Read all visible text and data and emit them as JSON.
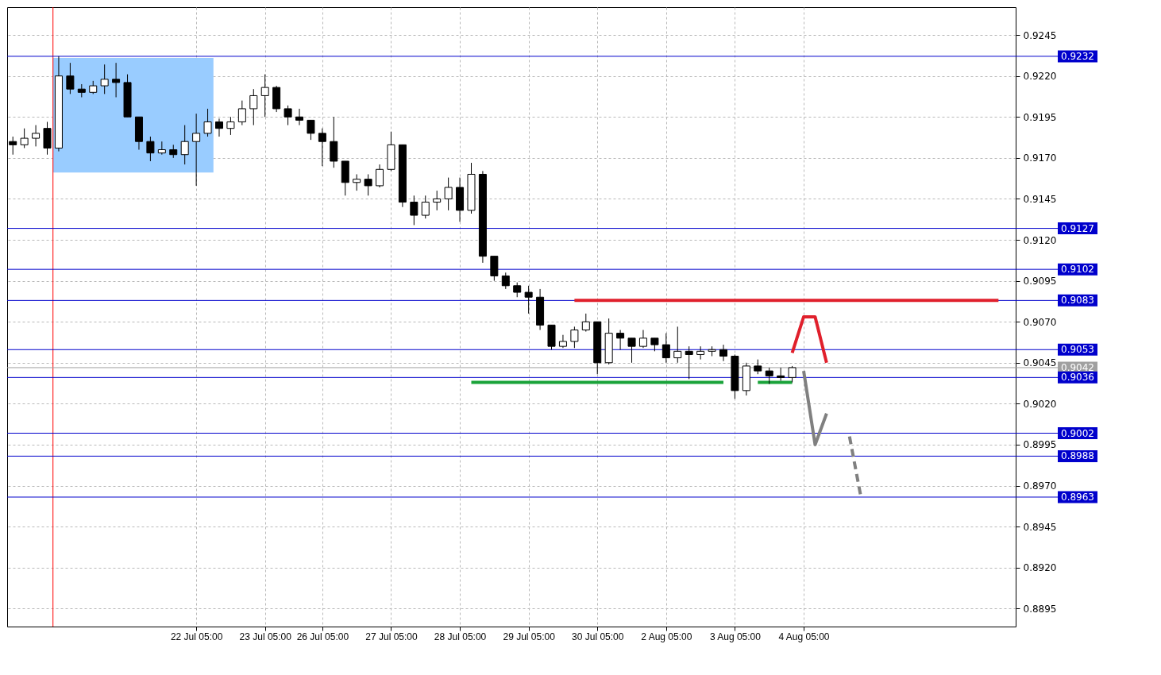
{
  "chart_data": {
    "type": "candlestick",
    "color": "#000000",
    "grid": true,
    "ylim": [
      0.8884,
      0.9262
    ],
    "yticks": [
      0.9245,
      {
        "value": 0.922,
        "label": "0.9220"
      },
      0.9195,
      {
        "value": 0.917,
        "label": "0.9170"
      },
      0.9145,
      {
        "value": 0.912,
        "label": "0.9120"
      },
      0.9095,
      {
        "value": 0.907,
        "label": "0.9070"
      },
      0.9045,
      {
        "value": 0.902,
        "label": "0.9020"
      },
      0.8995,
      {
        "value": 0.897,
        "label": "0.8970"
      },
      0.8945,
      {
        "value": 0.892,
        "label": "0.8920"
      },
      0.8895
    ],
    "categories": [
      null,
      null,
      null,
      null,
      null,
      null,
      null,
      null,
      null,
      null,
      null,
      null,
      null,
      null,
      null,
      null,
      "22 Jul 05:00",
      null,
      null,
      null,
      null,
      null,
      "23 Jul 05:00",
      null,
      null,
      null,
      null,
      "26 Jul 05:00",
      null,
      null,
      null,
      null,
      null,
      "27 Jul 05:00",
      null,
      null,
      null,
      null,
      null,
      "28 Jul 05:00",
      null,
      null,
      null,
      null,
      null,
      "29 Jul 05:00",
      null,
      null,
      null,
      null,
      null,
      "30 Jul 05:00",
      null,
      null,
      null,
      null,
      null,
      "2 Aug 05:00",
      null,
      null,
      null,
      null,
      null,
      "3 Aug 05:00",
      null,
      null,
      null,
      null,
      null,
      "4 Aug 05:00",
      null,
      null,
      null,
      null,
      null,
      null,
      null,
      null,
      null,
      null,
      null,
      null,
      null,
      null,
      null,
      null,
      null,
      null
    ],
    "ohlc": [
      [
        0.918,
        0.9183,
        0.9172,
        0.9178
      ],
      [
        0.9178,
        0.9188,
        0.9176,
        0.9182
      ],
      [
        0.9182,
        0.919,
        0.9177,
        0.9185
      ],
      [
        0.9188,
        0.9192,
        0.9172,
        0.9176
      ],
      [
        0.9176,
        0.9232,
        0.9174,
        0.922
      ],
      [
        0.922,
        0.9228,
        0.9209,
        0.9212
      ],
      [
        0.9212,
        0.9215,
        0.9207,
        0.921
      ],
      [
        0.921,
        0.9217,
        0.9209,
        0.9214
      ],
      [
        0.9214,
        0.9227,
        0.9209,
        0.9218
      ],
      [
        0.9218,
        0.9228,
        0.9207,
        0.9216
      ],
      [
        0.9216,
        0.9221,
        0.9195,
        0.9195
      ],
      [
        0.9195,
        0.9195,
        0.9175,
        0.918
      ],
      [
        0.918,
        0.9183,
        0.9168,
        0.9173
      ],
      [
        0.9173,
        0.918,
        0.9172,
        0.9175
      ],
      [
        0.9175,
        0.9178,
        0.917,
        0.9172
      ],
      [
        0.9172,
        0.919,
        0.9166,
        0.918
      ],
      [
        0.918,
        0.9197,
        0.9153,
        0.9185
      ],
      [
        0.9185,
        0.92,
        0.9183,
        0.9192
      ],
      [
        0.9192,
        0.9194,
        0.9183,
        0.9188
      ],
      [
        0.9188,
        0.9195,
        0.9184,
        0.9192
      ],
      [
        0.9192,
        0.9205,
        0.919,
        0.92
      ],
      [
        0.92,
        0.9212,
        0.919,
        0.9208
      ],
      [
        0.9208,
        0.9221,
        0.9195,
        0.9213
      ],
      [
        0.9213,
        0.9214,
        0.9198,
        0.92
      ],
      [
        0.92,
        0.9202,
        0.919,
        0.9195
      ],
      [
        0.9195,
        0.92,
        0.919,
        0.9193
      ],
      [
        0.9193,
        0.9193,
        0.9181,
        0.9185
      ],
      [
        0.9185,
        0.9188,
        0.9165,
        0.918
      ],
      [
        0.918,
        0.9195,
        0.9164,
        0.9168
      ],
      [
        0.9168,
        0.9168,
        0.9147,
        0.9155
      ],
      [
        0.9155,
        0.916,
        0.915,
        0.9157
      ],
      [
        0.9157,
        0.916,
        0.9147,
        0.9153
      ],
      [
        0.9153,
        0.9166,
        0.9152,
        0.9163
      ],
      [
        0.9163,
        0.9186,
        0.9162,
        0.9178
      ],
      [
        0.9178,
        0.9178,
        0.914,
        0.9143
      ],
      [
        0.9143,
        0.9147,
        0.9129,
        0.9135
      ],
      [
        0.9135,
        0.9147,
        0.9133,
        0.9143
      ],
      [
        0.9143,
        0.915,
        0.9138,
        0.9145
      ],
      [
        0.9145,
        0.9158,
        0.9138,
        0.9152
      ],
      [
        0.9152,
        0.9158,
        0.9131,
        0.9138
      ],
      [
        0.9138,
        0.9167,
        0.9136,
        0.916
      ],
      [
        0.916,
        0.9162,
        0.9106,
        0.911
      ],
      [
        0.911,
        0.911,
        0.9095,
        0.9098
      ],
      [
        0.9098,
        0.91,
        0.909,
        0.9092
      ],
      [
        0.9092,
        0.9094,
        0.9085,
        0.9088
      ],
      [
        0.9088,
        0.9092,
        0.9075,
        0.9085
      ],
      [
        0.9085,
        0.909,
        0.9065,
        0.9068
      ],
      [
        0.9068,
        0.9068,
        0.9053,
        0.9055
      ],
      [
        0.9055,
        0.9062,
        0.9054,
        0.9058
      ],
      [
        0.9058,
        0.9067,
        0.9054,
        0.9065
      ],
      [
        0.9065,
        0.9075,
        0.9064,
        0.907
      ],
      [
        0.907,
        0.907,
        0.9038,
        0.9045
      ],
      [
        0.9045,
        0.9072,
        0.9044,
        0.9063
      ],
      [
        0.9063,
        0.9065,
        0.9053,
        0.906
      ],
      [
        0.906,
        0.906,
        0.9045,
        0.9055
      ],
      [
        0.9055,
        0.9065,
        0.9054,
        0.906
      ],
      [
        0.906,
        0.906,
        0.9052,
        0.9056
      ],
      [
        0.9056,
        0.9063,
        0.9045,
        0.9048
      ],
      [
        0.9048,
        0.9067,
        0.9045,
        0.9052
      ],
      [
        0.9052,
        0.9055,
        0.9035,
        0.905
      ],
      [
        0.905,
        0.9055,
        0.9047,
        0.9052
      ],
      [
        0.9052,
        0.9055,
        0.9049,
        0.9053
      ],
      [
        0.9053,
        0.9056,
        0.9046,
        0.9049
      ],
      [
        0.9049,
        0.905,
        0.9023,
        0.9028
      ],
      [
        0.9028,
        0.9045,
        0.9025,
        0.9043
      ],
      [
        0.9043,
        0.9047,
        0.9038,
        0.904
      ],
      [
        0.904,
        0.9042,
        0.9032,
        0.9037
      ],
      [
        0.9037,
        0.9042,
        0.9034,
        0.9036
      ],
      [
        0.9036,
        0.9043,
        0.9033,
        0.9042
      ],
      null,
      null,
      null,
      null,
      null,
      null,
      null,
      null,
      null,
      null,
      null,
      null,
      null,
      null,
      null,
      null,
      null,
      null,
      null
    ],
    "series": [
      {
        "type": "line",
        "color": "#e0202c",
        "values": [
          null,
          null,
          null,
          null,
          null,
          null,
          null,
          null,
          null,
          null,
          null,
          null,
          null,
          null,
          null,
          null,
          null,
          null,
          null,
          null,
          null,
          null,
          null,
          null,
          null,
          null,
          null,
          null,
          null,
          null,
          null,
          null,
          null,
          null,
          null,
          null,
          null,
          null,
          null,
          null,
          null,
          null,
          null,
          null,
          null,
          null,
          null,
          null,
          null,
          0.9083,
          0.9083,
          0.9083,
          0.9083,
          0.9083,
          0.9083,
          0.9083,
          0.9083,
          0.9083,
          0.9083,
          0.9083,
          0.9083,
          0.9083,
          0.9083,
          0.9083,
          0.9083,
          0.9083,
          0.9083,
          0.9083,
          0.9083,
          0.9083,
          0.9083,
          0.9083,
          0.9083,
          0.9083,
          0.9083,
          0.9083,
          0.9083,
          0.9083,
          0.9083,
          0.9083,
          0.9083,
          0.9083,
          0.9083,
          0.9083,
          0.9083,
          0.9083,
          0.9083,
          null
        ]
      },
      {
        "type": "line",
        "color": "#1aa33a",
        "values": [
          null,
          null,
          null,
          null,
          null,
          null,
          null,
          null,
          null,
          null,
          null,
          null,
          null,
          null,
          null,
          null,
          null,
          null,
          null,
          null,
          null,
          null,
          null,
          null,
          null,
          null,
          null,
          null,
          null,
          null,
          null,
          null,
          null,
          null,
          null,
          null,
          null,
          null,
          null,
          null,
          0.9033,
          0.9033,
          0.9033,
          0.9033,
          0.9033,
          0.9033,
          0.9033,
          0.9033,
          0.9033,
          0.9033,
          0.9033,
          0.9033,
          0.9033,
          0.9033,
          0.9033,
          0.9033,
          0.9033,
          0.9033,
          0.9033,
          0.9033,
          0.9033,
          0.9033,
          0.9033,
          null,
          null,
          0.9033,
          0.9033,
          0.9033,
          0.9033,
          null,
          null,
          null,
          null,
          null,
          null,
          null,
          null,
          null,
          null,
          null,
          null,
          null,
          null,
          null,
          null,
          null,
          null,
          null
        ]
      },
      {
        "type": "line",
        "color": "#e0202c",
        "values": [
          null,
          null,
          null,
          null,
          null,
          null,
          null,
          null,
          null,
          null,
          null,
          null,
          null,
          null,
          null,
          null,
          null,
          null,
          null,
          null,
          null,
          null,
          null,
          null,
          null,
          null,
          null,
          null,
          null,
          null,
          null,
          null,
          null,
          null,
          null,
          null,
          null,
          null,
          null,
          null,
          null,
          null,
          null,
          null,
          null,
          null,
          null,
          null,
          null,
          null,
          null,
          null,
          null,
          null,
          null,
          null,
          null,
          null,
          null,
          null,
          null,
          null,
          null,
          null,
          null,
          null,
          null,
          null,
          0.9051,
          0.9073,
          0.9073,
          0.9045,
          null,
          null,
          null,
          null,
          null,
          null,
          null,
          null,
          null,
          null,
          null,
          null,
          null,
          null,
          null,
          null
        ]
      },
      {
        "type": "line",
        "color": "#808080",
        "values": [
          null,
          null,
          null,
          null,
          null,
          null,
          null,
          null,
          null,
          null,
          null,
          null,
          null,
          null,
          null,
          null,
          null,
          null,
          null,
          null,
          null,
          null,
          null,
          null,
          null,
          null,
          null,
          null,
          null,
          null,
          null,
          null,
          null,
          null,
          null,
          null,
          null,
          null,
          null,
          null,
          null,
          null,
          null,
          null,
          null,
          null,
          null,
          null,
          null,
          null,
          null,
          null,
          null,
          null,
          null,
          null,
          null,
          null,
          null,
          null,
          null,
          null,
          null,
          null,
          null,
          null,
          null,
          null,
          null,
          0.904,
          0.8995,
          0.9014,
          null,
          null,
          null,
          null,
          null,
          null,
          null,
          null,
          null,
          null,
          null,
          null,
          null,
          null,
          null,
          null
        ]
      },
      {
        "type": "line",
        "color": "#808080",
        "line_style": "dashed",
        "values": [
          null,
          null,
          null,
          null,
          null,
          null,
          null,
          null,
          null,
          null,
          null,
          null,
          null,
          null,
          null,
          null,
          null,
          null,
          null,
          null,
          null,
          null,
          null,
          null,
          null,
          null,
          null,
          null,
          null,
          null,
          null,
          null,
          null,
          null,
          null,
          null,
          null,
          null,
          null,
          null,
          null,
          null,
          null,
          null,
          null,
          null,
          null,
          null,
          null,
          null,
          null,
          null,
          null,
          null,
          null,
          null,
          null,
          null,
          null,
          null,
          null,
          null,
          null,
          null,
          null,
          null,
          null,
          null,
          null,
          null,
          null,
          null,
          null,
          0.9,
          0.8963,
          null,
          null,
          null,
          null,
          null,
          null,
          null,
          null,
          null,
          null,
          null,
          null,
          null
        ]
      }
    ],
    "ref_lines": [
      {
        "axis": "y",
        "value": 0.9232,
        "label": "0.9232",
        "color": "#0000cc"
      },
      {
        "axis": "y",
        "value": 0.9127,
        "label": "0.9127",
        "color": "#0000cc"
      },
      {
        "axis": "y",
        "value": 0.9102,
        "label": "0.9102",
        "color": "#0000cc"
      },
      {
        "axis": "y",
        "value": 0.9083,
        "label": "0.9083",
        "color": "#0000cc"
      },
      {
        "axis": "y",
        "value": 0.9053,
        "label": "0.9053",
        "color": "#0000cc"
      },
      {
        "axis": "y",
        "value": 0.9042,
        "label": "0.9042",
        "color": "#a0a0a0"
      },
      {
        "axis": "y",
        "value": 0.9036,
        "label": "0.9036",
        "color": "#0000cc"
      },
      {
        "axis": "y",
        "value": 0.9002,
        "label": "0.9002",
        "color": "#0000cc"
      },
      {
        "axis": "y",
        "value": 0.8988,
        "label": "0.8988",
        "color": "#0000cc"
      },
      {
        "axis": "y",
        "value": 0.8963,
        "label": "0.8963",
        "color": "#0000cc"
      }
    ]
  }
}
